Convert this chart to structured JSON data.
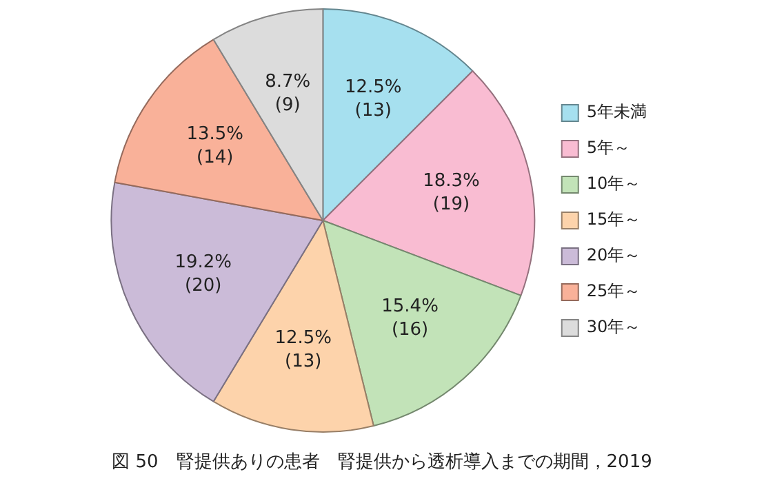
{
  "chart_data": {
    "type": "pie",
    "title": "図 50　腎提供ありの患者　腎提供から透析導入までの期間，2019",
    "categories": [
      "5年未満",
      "5年～",
      "10年～",
      "15年～",
      "20年～",
      "25年～",
      "30年～"
    ],
    "values": [
      13,
      19,
      16,
      13,
      20,
      14,
      9
    ],
    "value_labels": [
      "12.5%\n(13)",
      "18.3%\n(19)",
      "15.4%\n(16)",
      "12.5%\n(13)",
      "19.2%\n(20)",
      "13.5%\n(14)",
      "8.7%\n(9)"
    ],
    "colors": [
      "#a6e0ef",
      "#f9bcd2",
      "#c2e3b8",
      "#fdd3ab",
      "#cbbbd8",
      "#f9b199",
      "#dcdcdc"
    ],
    "legend": "right"
  }
}
